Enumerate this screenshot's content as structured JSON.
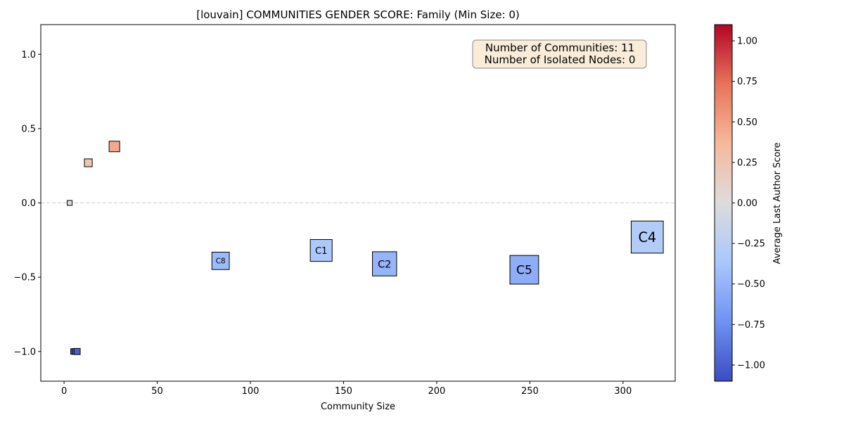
{
  "chart_data": {
    "type": "scatter",
    "title": "[louvain] COMMUNITIES GENDER SCORE: Family (Min Size: 0)",
    "xlabel": "Community Size",
    "ylabel": "",
    "xlim": [
      -12.5,
      328
    ],
    "ylim": [
      -1.2,
      1.2
    ],
    "x_ticks": [
      0,
      50,
      100,
      150,
      200,
      250,
      300
    ],
    "y_ticks": [
      1.0,
      0.5,
      0.0,
      -0.5,
      -1.0
    ],
    "y_tick_labels": [
      "1.0",
      "0.5",
      "0.0",
      "−0.5",
      "−1.0"
    ],
    "reference_line_y": 0.0,
    "grid": false,
    "colorbar": {
      "label": "Average Last Author Score",
      "range": [
        -1.1,
        1.1
      ],
      "ticks": [
        1.0,
        0.75,
        0.5,
        0.25,
        0.0,
        -0.25,
        -0.5,
        -0.75,
        -1.0
      ],
      "tick_labels": [
        "1.00",
        "0.75",
        "0.50",
        "0.25",
        "0.00",
        "−0.25",
        "−0.50",
        "−0.75",
        "−1.00"
      ],
      "colormap": "coolwarm",
      "color_stops": [
        "#3b4cc0",
        "#6f92f3",
        "#aac7fd",
        "#dddcdc",
        "#f7b89c",
        "#e7745b",
        "#b40426"
      ]
    },
    "info_box": {
      "communities_text": "Number of Communities: 11",
      "isolated_text": "Number of Isolated Nodes: 0",
      "background": "#f9ecd8"
    },
    "points": [
      {
        "label": "",
        "size": 3,
        "score": 0.0,
        "color_value": 0.0
      },
      {
        "label": "",
        "size": 13,
        "score": 0.27,
        "color_value": 0.22
      },
      {
        "label": "",
        "size": 27,
        "score": 0.38,
        "color_value": 0.45
      },
      {
        "label": "",
        "size": 5,
        "score": -1.0,
        "color_value": -1.0
      },
      {
        "label": "",
        "size": 6,
        "score": -1.0,
        "color_value": -1.0
      },
      {
        "label": "",
        "size": 7,
        "score": -1.0,
        "color_value": -1.0
      },
      {
        "label": "C8",
        "size": 84,
        "score": -0.39,
        "color_value": -0.45
      },
      {
        "label": "C1",
        "size": 138,
        "score": -0.32,
        "color_value": -0.35
      },
      {
        "label": "C2",
        "size": 172,
        "score": -0.41,
        "color_value": -0.5
      },
      {
        "label": "C5",
        "size": 247,
        "score": -0.45,
        "color_value": -0.55
      },
      {
        "label": "C4",
        "size": 313,
        "score": -0.23,
        "color_value": -0.3
      }
    ]
  }
}
